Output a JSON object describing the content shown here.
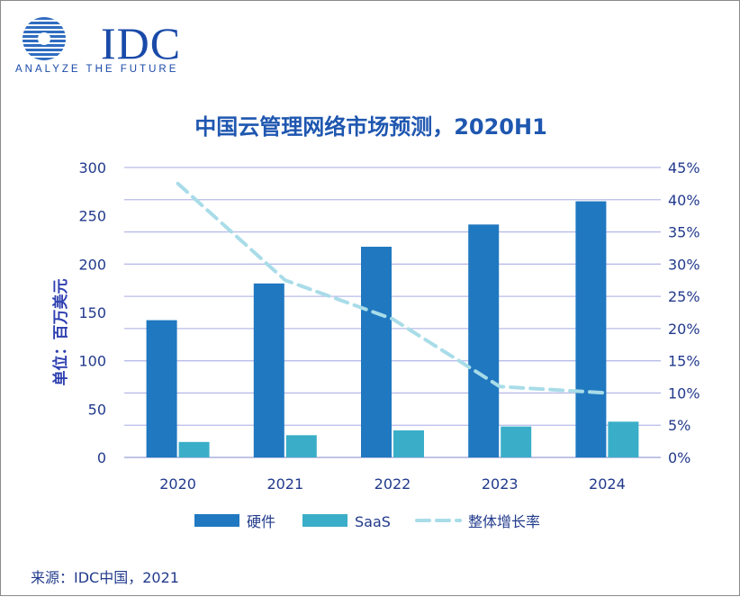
{
  "logo": {
    "text": "IDC",
    "tagline": "ANALYZE THE FUTURE"
  },
  "colors": {
    "hardware": "#2078c0",
    "saas": "#3aaec8",
    "growth": "#a8dce8",
    "text": "#223a8c",
    "grid": "#b8bce8"
  },
  "chart_data": {
    "type": "bar",
    "title": "中国云管理网络市场预测，2020H1",
    "ylabel": "单位：百万美元",
    "categories": [
      "2020",
      "2021",
      "2022",
      "2023",
      "2024"
    ],
    "ylim": [
      0,
      300
    ],
    "yticks": [
      0,
      50,
      100,
      150,
      200,
      250,
      300
    ],
    "y2lim": [
      0,
      45
    ],
    "y2ticks": [
      "0%",
      "5%",
      "10%",
      "15%",
      "20%",
      "25%",
      "30%",
      "35%",
      "40%",
      "45%"
    ],
    "series": [
      {
        "name": "硬件",
        "type": "bar",
        "values": [
          142,
          180,
          218,
          241,
          265
        ]
      },
      {
        "name": "SaaS",
        "type": "bar",
        "values": [
          16,
          23,
          28,
          32,
          37
        ]
      },
      {
        "name": "整体增长率",
        "type": "line",
        "axis": "right",
        "values": [
          42.5,
          27.5,
          21.5,
          11,
          10
        ]
      }
    ],
    "grid": true,
    "legend": "bottom"
  },
  "source": "来源：IDC中国，2021"
}
